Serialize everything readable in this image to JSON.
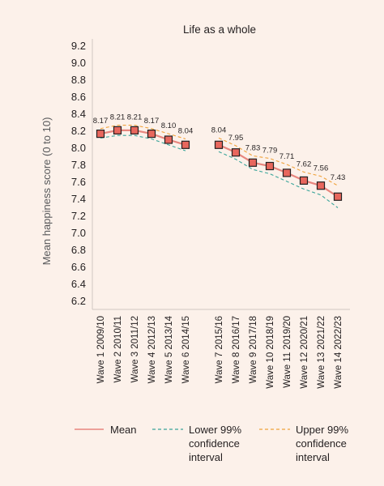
{
  "chart_data": {
    "type": "line",
    "title": "Life as a whole",
    "xlabel": "",
    "ylabel": "Mean happiness score (0 to 10)",
    "ylim": [
      6.2,
      9.2
    ],
    "yticks": [
      "9.2",
      "9.0",
      "8.8",
      "8.6",
      "8.4",
      "8.2",
      "8.0",
      "7.8",
      "7.6",
      "7.4",
      "7.2",
      "7.0",
      "6.8",
      "6.6",
      "6.4",
      "6.2"
    ],
    "grid": false,
    "legend_position": "bottom",
    "categories": [
      "Wave 1 2009/10",
      "Wave 2 2010/11",
      "Wave 3 2011/12",
      "Wave 4 2012/13",
      "Wave 5 2013/14",
      "Wave 6 2014/15",
      "Wave 7 2015/16",
      "Wave 8 2016/17",
      "Wave 9 2017/18",
      "Wave 10 2018/19",
      "Wave 11 2019/20",
      "Wave 12 2020/21",
      "Wave 13 2021/22",
      "Wave 14 2022/23"
    ],
    "segments": [
      [
        0,
        5
      ],
      [
        6,
        13
      ]
    ],
    "series": [
      {
        "name": "Mean",
        "color": "#e8867e",
        "marker_color": "#e8675d",
        "values": [
          8.17,
          8.21,
          8.21,
          8.17,
          8.1,
          8.04,
          8.04,
          7.95,
          7.83,
          7.79,
          7.71,
          7.62,
          7.56,
          7.43
        ]
      },
      {
        "name": "Lower 99% confidence interval",
        "color": "#3aa59a",
        "values": [
          8.12,
          8.15,
          8.15,
          8.11,
          8.04,
          7.97,
          7.96,
          7.87,
          7.75,
          7.7,
          7.61,
          7.52,
          7.45,
          7.3
        ]
      },
      {
        "name": "Upper 99% confidence interval",
        "color": "#f0a23a",
        "values": [
          8.23,
          8.27,
          8.27,
          8.23,
          8.17,
          8.11,
          8.12,
          8.03,
          7.91,
          7.88,
          7.81,
          7.72,
          7.67,
          7.56
        ]
      }
    ],
    "data_labels": [
      "8.17",
      "8.21",
      "8.21",
      "8.17",
      "8.10",
      "8.04",
      "8.04",
      "7.95",
      "7.83",
      "7.79",
      "7.71",
      "7.62",
      "7.56",
      "7.43"
    ]
  },
  "legend": {
    "mean_label": "Mean",
    "lower_label_1": "Lower 99%",
    "lower_label_2": "confidence",
    "lower_label_3": "interval",
    "upper_label_1": "Upper 99%",
    "upper_label_2": "confidence",
    "upper_label_3": "interval"
  }
}
